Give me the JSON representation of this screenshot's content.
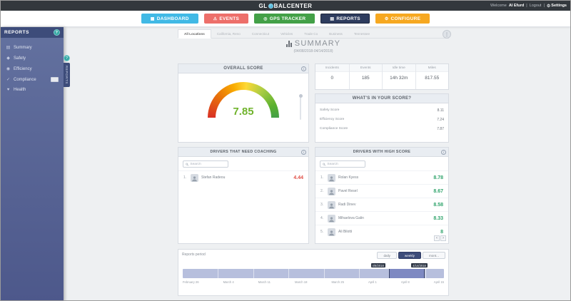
{
  "topbar": {
    "logo_prefix": "GL",
    "logo_suffix": "BALCENTER",
    "welcome_label": "Welcome",
    "username": "Al Efurd",
    "divider": "|",
    "logout_label": "Logout",
    "settings_label": "Settings"
  },
  "nav": {
    "items": [
      {
        "label": "DASHBOARD",
        "color": "#41b9e5"
      },
      {
        "label": "EVENTS",
        "color": "#ed6f6a"
      },
      {
        "label": "GPS TRACKER",
        "color": "#43a047"
      },
      {
        "label": "REPORTS",
        "color": "#2e3c5e"
      },
      {
        "label": "CONFIGURE",
        "color": "#f6a821"
      }
    ]
  },
  "sidebar": {
    "title": "REPORTS",
    "items": [
      {
        "label": "Summary"
      },
      {
        "label": "Safety"
      },
      {
        "label": "Efficiency"
      },
      {
        "label": "Compliance"
      },
      {
        "label": "Health"
      }
    ],
    "flyout_label": "REPORTS",
    "help_glyph": "?"
  },
  "tabs": {
    "items": [
      {
        "label": "All Locations"
      },
      {
        "label": "California, Reno"
      },
      {
        "label": "Connecticut"
      },
      {
        "label": "Vehicles"
      },
      {
        "label": "Trade Co"
      },
      {
        "label": "Business"
      },
      {
        "label": "Tennessee"
      }
    ]
  },
  "header": {
    "title": "SUMMARY",
    "date_range": "(04/08/2018-04/14/2018)"
  },
  "overall": {
    "header": "OVERALL SCORE",
    "value": "7.85",
    "value_color": "#70b32c"
  },
  "stats": {
    "columns": [
      {
        "label": "Incidents",
        "value": "0"
      },
      {
        "label": "Events",
        "value": "185"
      },
      {
        "label": "Idle time",
        "value": "14h 32m"
      },
      {
        "label": "Miles",
        "value": "817.55"
      }
    ]
  },
  "breakdown": {
    "header": "WHAT'S IN YOUR SCORE?",
    "rows": [
      {
        "label": "Safety Score",
        "value": "8.11",
        "pct": 81,
        "color": "#4a90d2"
      },
      {
        "label": "Efficiency Score",
        "value": "7.24",
        "pct": 72,
        "color": "#34b077"
      },
      {
        "label": "Compliance Score",
        "value": "7.87",
        "pct": 79,
        "color": "#f5a623"
      }
    ]
  },
  "coaching": {
    "header": "DRIVERS THAT NEED COACHING",
    "search_placeholder": "Search",
    "score_color": "#e05048",
    "drivers": [
      {
        "rank": "1.",
        "name": "Stefan Radeou",
        "score": "4.44"
      }
    ]
  },
  "high": {
    "header": "DRIVERS WITH HIGH SCORE",
    "search_placeholder": "Search",
    "score_color": "#2fa36b",
    "drivers": [
      {
        "rank": "1.",
        "name": "Rolan Kyess",
        "score": "8.78"
      },
      {
        "rank": "2.",
        "name": "Pavel Resel",
        "score": "8.67"
      },
      {
        "rank": "3.",
        "name": "Radi Dinev",
        "score": "8.58"
      },
      {
        "rank": "4.",
        "name": "Mihaelova Galin",
        "score": "8.33"
      },
      {
        "rank": "5.",
        "name": "Ali Bilotti",
        "score": "8"
      }
    ]
  },
  "period": {
    "label": "Reports period",
    "buttons": [
      {
        "label": "daily"
      },
      {
        "label": "weekly"
      },
      {
        "label": "mont..."
      }
    ],
    "range_start": "4/8/2018",
    "range_end": "4/14/2018",
    "axis_labels": [
      "February 26",
      "March 4",
      "March 11",
      "March 18",
      "March 25",
      "April 1",
      "April 8",
      "April 15"
    ]
  }
}
